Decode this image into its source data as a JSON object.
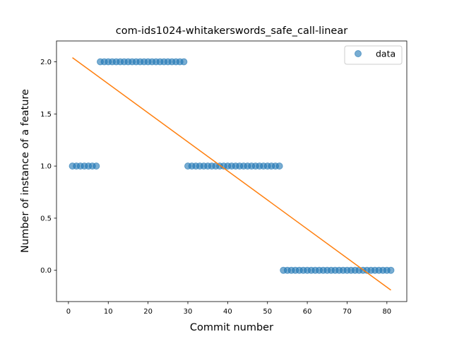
{
  "chart_data": {
    "type": "scatter",
    "title": "com-ids1024-whitakerswords_safe_call-linear",
    "xlabel": "Commit number",
    "ylabel": "Number of instance of a feature",
    "xlim": [
      -3,
      85
    ],
    "ylim": [
      -0.3,
      2.2
    ],
    "xticks": [
      0,
      10,
      20,
      30,
      40,
      50,
      60,
      70,
      80
    ],
    "yticks": [
      0.0,
      0.5,
      1.0,
      1.5,
      2.0
    ],
    "xtick_labels": [
      "0",
      "10",
      "20",
      "30",
      "40",
      "50",
      "60",
      "70",
      "80"
    ],
    "ytick_labels": [
      "0.0",
      "0.5",
      "1.0",
      "1.5",
      "2.0"
    ],
    "grid": false,
    "legend": {
      "placement": "top-right",
      "entries": [
        "data"
      ]
    },
    "series": [
      {
        "name": "data",
        "kind": "scatter",
        "color": "#1f77b4",
        "segments": [
          {
            "x_start": 1,
            "x_end": 7,
            "y": 1
          },
          {
            "x_start": 8,
            "x_end": 29,
            "y": 2
          },
          {
            "x_start": 30,
            "x_end": 53,
            "y": 1
          },
          {
            "x_start": 54,
            "x_end": 81,
            "y": 0
          }
        ]
      },
      {
        "kind": "line",
        "color": "#ff7f0e",
        "x": [
          1,
          81
        ],
        "y": [
          2.04,
          -0.19
        ]
      }
    ]
  },
  "colors": {
    "scatter": "#1f77b4",
    "fit_line": "#ff7f0e",
    "axes": "#000000",
    "legend_border": "#cccccc"
  }
}
